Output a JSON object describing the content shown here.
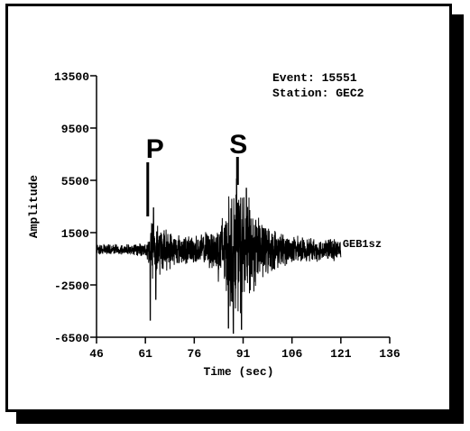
{
  "chart_data": {
    "type": "line",
    "title": "",
    "xlabel": "Time (sec)",
    "ylabel": "Amplitude",
    "xlim": [
      46,
      136
    ],
    "ylim": [
      -6500,
      13500
    ],
    "xticks": [
      46,
      61,
      76,
      91,
      106,
      121,
      136
    ],
    "yticks": [
      13500,
      9500,
      5500,
      1500,
      -2500,
      -6500
    ],
    "grid": false,
    "annotations": {
      "event_label": "Event: 15551",
      "station_label": "Station: GEC2",
      "trace_label": "GEB1sz",
      "p_label": "P",
      "s_label": "S",
      "p_time": 62,
      "s_time": 89
    },
    "series": [
      {
        "name": "GEB1sz",
        "color": "#000000",
        "x_start": 46,
        "x_end": 121,
        "envelope": [
          [
            46,
            400
          ],
          [
            50,
            450
          ],
          [
            54,
            450
          ],
          [
            58,
            500
          ],
          [
            61,
            600
          ],
          [
            62,
            1200
          ],
          [
            63,
            3000
          ],
          [
            64,
            2700
          ],
          [
            66,
            1900
          ],
          [
            70,
            1400
          ],
          [
            74,
            1200
          ],
          [
            78,
            1300
          ],
          [
            82,
            1800
          ],
          [
            85,
            3500
          ],
          [
            87,
            4800
          ],
          [
            89,
            5500
          ],
          [
            91,
            5200
          ],
          [
            93,
            4500
          ],
          [
            95,
            3200
          ],
          [
            98,
            2200
          ],
          [
            102,
            1500
          ],
          [
            106,
            1200
          ],
          [
            110,
            1000
          ],
          [
            115,
            950
          ],
          [
            121,
            900
          ]
        ],
        "peaks": [
          {
            "t": 62.5,
            "v": -5200
          },
          {
            "t": 63.5,
            "v": 3400
          },
          {
            "t": 64.2,
            "v": -3600
          },
          {
            "t": 86.5,
            "v": -5800
          },
          {
            "t": 88.0,
            "v": -6200
          },
          {
            "t": 89.0,
            "v": 5600
          },
          {
            "t": 90.5,
            "v": -5900
          },
          {
            "t": 92.0,
            "v": 4900
          }
        ]
      }
    ]
  }
}
